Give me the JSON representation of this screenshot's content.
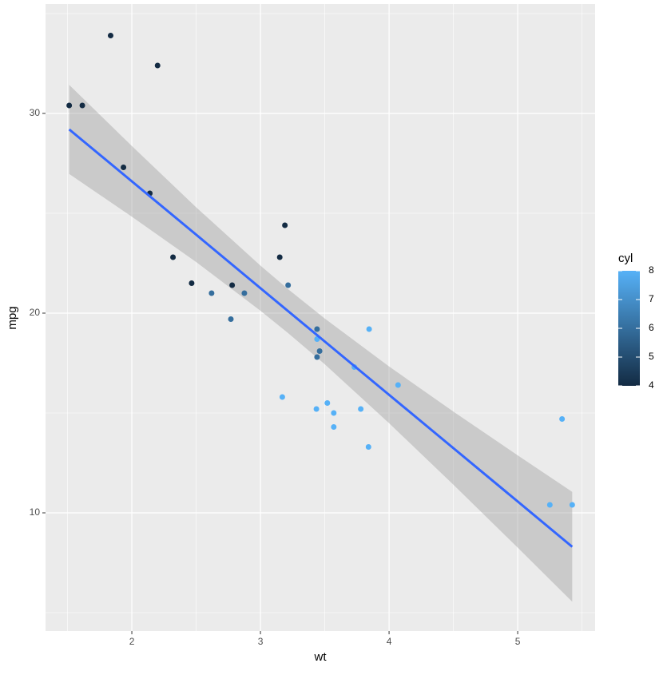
{
  "chart_data": {
    "type": "scatter",
    "x_label": "wt",
    "y_label": "mpg",
    "x": [
      2.62,
      2.875,
      2.32,
      3.215,
      3.44,
      3.46,
      3.57,
      3.19,
      3.15,
      3.44,
      3.44,
      4.07,
      3.73,
      3.78,
      5.25,
      5.424,
      5.345,
      2.2,
      1.615,
      1.835,
      2.465,
      3.52,
      3.435,
      3.84,
      3.845,
      1.935,
      2.14,
      1.513,
      3.17,
      2.77,
      3.57,
      2.78
    ],
    "y": [
      21.0,
      21.0,
      22.8,
      21.4,
      18.7,
      18.1,
      14.3,
      24.4,
      22.8,
      19.2,
      17.8,
      16.4,
      17.3,
      15.2,
      10.4,
      10.4,
      14.7,
      32.4,
      30.4,
      33.9,
      21.5,
      15.5,
      15.2,
      13.3,
      19.2,
      27.3,
      26.0,
      30.4,
      15.8,
      19.7,
      15.0,
      21.4
    ],
    "color_values": [
      6,
      6,
      4,
      6,
      8,
      6,
      8,
      4,
      4,
      6,
      6,
      8,
      8,
      8,
      8,
      8,
      8,
      4,
      4,
      4,
      4,
      8,
      8,
      8,
      8,
      4,
      4,
      4,
      8,
      6,
      8,
      4
    ],
    "smooth": {
      "color": "#3366FF",
      "band_color": "#999999",
      "x": [
        1.513,
        2,
        2.5,
        3,
        3.217,
        3.5,
        4,
        4.5,
        5,
        5.424
      ],
      "fit": [
        29.2,
        26.6,
        23.93,
        21.25,
        20.09,
        18.58,
        15.91,
        13.24,
        10.57,
        8.3
      ],
      "lower": [
        26.97,
        24.83,
        22.56,
        20.12,
        18.99,
        17.44,
        14.49,
        11.41,
        8.26,
        5.55
      ],
      "upper": [
        31.43,
        28.37,
        25.3,
        22.38,
        21.19,
        19.73,
        17.33,
        15.07,
        12.88,
        11.05
      ]
    },
    "xlim": [
      1.329,
      5.602
    ],
    "ylim": [
      4.08,
      35.48
    ],
    "xticks": [
      2,
      3,
      4,
      5
    ],
    "yticks": [
      10,
      20,
      30
    ],
    "x_minor_ticks": [
      1.5,
      2.5,
      3.5,
      4.5,
      5.5
    ],
    "y_minor_ticks": [
      5,
      15,
      25,
      35
    ],
    "grid": true,
    "legend": {
      "title": "cyl",
      "limits": [
        4,
        8
      ],
      "ticks": [
        4,
        5,
        6,
        7,
        8
      ],
      "low": "#132B43",
      "high": "#56B1F7",
      "position": "right"
    }
  }
}
